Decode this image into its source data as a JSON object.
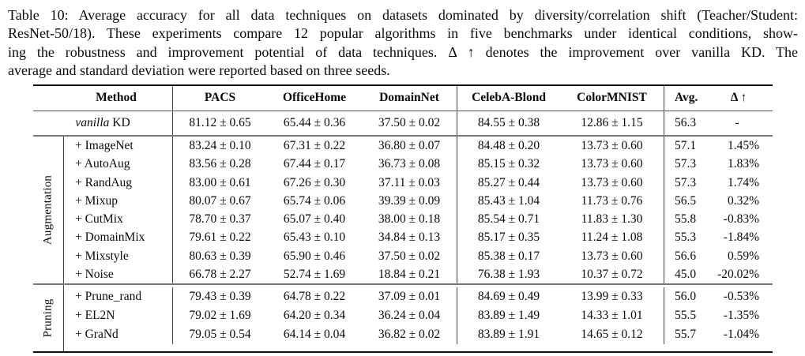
{
  "caption": {
    "lines": [
      "Table 10: Average accuracy for all data techniques on datasets dominated by diversity/correlation shift (Teacher/Student:",
      "ResNet-50/18). These experiments compare 12 popular algorithms in five benchmarks under identical conditions, show-",
      "ing the robustness and improvement potential of data techniques. Δ ↑ denotes the improvement over vanilla KD. The",
      "average and standard deviation were reported based on three seeds."
    ]
  },
  "table": {
    "columns": [
      "Method",
      "PACS",
      "OfficeHome",
      "DomainNet",
      "CelebA-Blond",
      "ColorMNIST",
      "Avg.",
      "Δ ↑"
    ],
    "vanilla_row": {
      "method_em": "vanilla",
      "method_rest": " KD",
      "pacs": "81.12 ± 0.65",
      "officehome": "65.44 ± 0.36",
      "domainnet": "37.50 ± 0.02",
      "celeba": "84.55 ± 0.38",
      "colormnist": "12.86 ± 1.15",
      "avg": "56.3",
      "delta": "-"
    },
    "groups": [
      {
        "label": "Augmentation",
        "rows": [
          {
            "method": "+ ImageNet",
            "pacs": "83.24 ± 0.10",
            "officehome": "67.31 ± 0.22",
            "domainnet": "36.80 ± 0.07",
            "celeba": "84.48 ± 0.20",
            "colormnist": "13.73 ± 0.60",
            "avg": "57.1",
            "delta": "1.45%"
          },
          {
            "method": "+ AutoAug",
            "pacs": "83.56 ± 0.28",
            "officehome": "67.44 ± 0.17",
            "domainnet": "36.73 ± 0.08",
            "celeba": "85.15 ± 0.32",
            "colormnist": "13.73 ± 0.60",
            "avg": "57.3",
            "delta": "1.83%"
          },
          {
            "method": "+ RandAug",
            "pacs": "83.00 ± 0.61",
            "officehome": "67.26 ± 0.30",
            "domainnet": "37.11 ± 0.03",
            "celeba": "85.27 ± 0.44",
            "colormnist": "13.73 ± 0.60",
            "avg": "57.3",
            "delta": "1.74%"
          },
          {
            "method": "+ Mixup",
            "pacs": "80.07 ± 0.67",
            "officehome": "65.74 ± 0.06",
            "domainnet": "39.39 ± 0.09",
            "celeba": "85.43 ± 1.04",
            "colormnist": "11.73 ± 0.76",
            "avg": "56.5",
            "delta": "0.32%"
          },
          {
            "method": "+ CutMix",
            "pacs": "78.70 ± 0.37",
            "officehome": "65.07 ± 0.40",
            "domainnet": "38.00 ± 0.18",
            "celeba": "85.54 ± 0.71",
            "colormnist": "11.83 ± 1.30",
            "avg": "55.8",
            "delta": "-0.83%"
          },
          {
            "method": "+ DomainMix",
            "pacs": "79.61 ± 0.22",
            "officehome": "65.43 ± 0.10",
            "domainnet": "34.84 ± 0.13",
            "celeba": "85.17 ± 0.35",
            "colormnist": "11.24 ± 1.08",
            "avg": "55.3",
            "delta": "-1.84%"
          },
          {
            "method": "+ Mixstyle",
            "pacs": "80.63 ± 0.39",
            "officehome": "65.90 ± 0.46",
            "domainnet": "37.50 ± 0.02",
            "celeba": "85.38 ± 0.17",
            "colormnist": "13.73 ± 0.60",
            "avg": "56.6",
            "delta": "0.59%"
          },
          {
            "method": "+ Noise",
            "pacs": "66.78 ± 2.27",
            "officehome": "52.74 ± 1.69",
            "domainnet": "18.84 ± 0.21",
            "celeba": "76.38 ± 1.93",
            "colormnist": "10.37 ± 0.72",
            "avg": "45.0",
            "delta": "-20.02%"
          }
        ]
      },
      {
        "label": "Pruning",
        "rows": [
          {
            "method": "+ Prune_rand",
            "pacs": "79.43 ± 0.39",
            "officehome": "64.78 ± 0.22",
            "domainnet": "37.09 ± 0.01",
            "celeba": "84.69 ± 0.49",
            "colormnist": "13.99 ± 0.33",
            "avg": "56.0",
            "delta": "-0.53%"
          },
          {
            "method": "+ EL2N",
            "pacs": "79.02 ± 1.69",
            "officehome": "64.20 ± 0.34",
            "domainnet": "36.24 ± 0.04",
            "celeba": "83.89 ± 1.49",
            "colormnist": "14.33 ± 1.01",
            "avg": "55.5",
            "delta": "-1.35%"
          },
          {
            "method": "+ GraNd",
            "pacs": "79.05 ± 0.54",
            "officehome": "64.14 ± 0.04",
            "domainnet": "36.82 ± 0.02",
            "celeba": "83.89 ± 1.91",
            "colormnist": "14.65 ± 0.12",
            "avg": "55.7",
            "delta": "-1.04%"
          }
        ]
      }
    ]
  }
}
